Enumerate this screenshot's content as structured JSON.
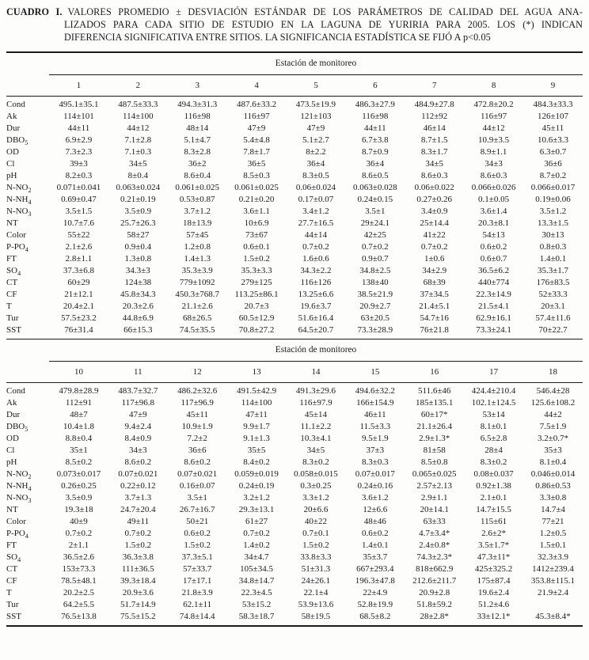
{
  "caption": {
    "label": "CUADRO I.",
    "lines": [
      "VALORES PROMEDIO ± DESVIACIÓN ESTÁNDAR DE LOS PARÁMETROS DE CALIDAD DEL AGUA ANA-",
      "LIZADOS PARA CADA SITIO DE ESTUDIO EN LA LAGUNA DE YURIRIA PARA 2005. LOS (*) INDICAN",
      "DIFERENCIA SIGNIFICATIVA ENTRE SITIOS. LA SIGNIFICANCIA ESTADÍSTICA SE FIJÓ A p<0.05"
    ]
  },
  "tables": [
    {
      "group_header": "Estación de monitoreo",
      "stations": [
        "1",
        "2",
        "3",
        "4",
        "5",
        "6",
        "7",
        "8",
        "9"
      ],
      "rows": [
        {
          "param": {
            "base": "Cond",
            "sub": ""
          },
          "values": [
            "495.1±35.1",
            "487.5±33.3",
            "494.3±31.3",
            "487.6±33.2",
            "473.5±19.9",
            "486.3±27.9",
            "484.9±27.8",
            "472.8±20.2",
            "484.3±33.3"
          ]
        },
        {
          "param": {
            "base": "Ak",
            "sub": ""
          },
          "values": [
            "114±101",
            "114±100",
            "116±98",
            "116±97",
            "121±103",
            "116±98",
            "112±92",
            "116±97",
            "126±107"
          ]
        },
        {
          "param": {
            "base": "Dur",
            "sub": ""
          },
          "values": [
            "44±11",
            "44±12",
            "48±14",
            "47±9",
            "47±9",
            "44±11",
            "46±14",
            "44±12",
            "45±11"
          ]
        },
        {
          "param": {
            "base": "DBO",
            "sub": "5"
          },
          "values": [
            "6.9±2.9",
            "7.1±2.8",
            "5.1±4.7",
            "5.4±4.8",
            "5.1±2.7",
            "6.7±3.8",
            "8.7±1.5",
            "10.9±3.5",
            "10.6±3.3"
          ]
        },
        {
          "param": {
            "base": "OD",
            "sub": ""
          },
          "values": [
            "7.3±2.3",
            "7.1±0.3",
            "8.3±2.8",
            "7.8±1.7",
            "8±2.2",
            "8.7±0.9",
            "8.3±1.7",
            "8.9±1.1",
            "6.3±0.7"
          ]
        },
        {
          "param": {
            "base": "Cl",
            "sub": ""
          },
          "values": [
            "39±3",
            "34±5",
            "36±2",
            "36±5",
            "36±4",
            "36±4",
            "34±5",
            "34±3",
            "36±6"
          ]
        },
        {
          "param": {
            "base": "pH",
            "sub": ""
          },
          "values": [
            "8.2±0.3",
            "8±0.4",
            "8.6±0.4",
            "8.5±0.3",
            "8.3±0.5",
            "8.6±0.5",
            "8.6±0.3",
            "8.6±0.3",
            "8.7±0.2"
          ]
        },
        {
          "param": {
            "base": "N-NO",
            "sub": "2"
          },
          "values": [
            "0.071±0.041",
            "0.063±0.024",
            "0.061±0.025",
            "0.061±0.025",
            "0.06±0.024",
            "0.063±0.028",
            "0.06±0.022",
            "0.066±0.026",
            "0.066±0.017"
          ]
        },
        {
          "param": {
            "base": "N-NH",
            "sub": "4"
          },
          "values": [
            "0.69±0.47",
            "0.21±0.19",
            "0.53±0.87",
            "0.21±0.20",
            "0.17±0.07",
            "0.24±0.15",
            "0.27±0.26",
            "0.1±0.05",
            "0.19±0.06"
          ]
        },
        {
          "param": {
            "base": "N-NO",
            "sub": "3"
          },
          "values": [
            "3.5±1.5",
            "3.5±0.9",
            "3.7±1.2",
            "3.6±1.1",
            "3.4±1.2",
            "3.5±1",
            "3.4±0.9",
            "3.6±1.4",
            "3.5±1.2"
          ]
        },
        {
          "param": {
            "base": "NT",
            "sub": ""
          },
          "values": [
            "10.7±7.6",
            "25.7±26.3",
            "18±13.9",
            "10±6.9",
            "27.7±16.5",
            "29±24.1",
            "25±14.4",
            "20.3±8.1",
            "13.3±1.5"
          ]
        },
        {
          "param": {
            "base": "Color",
            "sub": ""
          },
          "values": [
            "55±22",
            "58±27",
            "57±45",
            "73±67",
            "44±14",
            "42±25",
            "41±22",
            "54±13",
            "30±13"
          ]
        },
        {
          "param": {
            "base": "P-PO",
            "sub": "4"
          },
          "values": [
            "2.1±2.6",
            "0.9±0.4",
            "1.2±0.8",
            "0.6±0.1",
            "0.7±0.2",
            "0.7±0.2",
            "0.7±0.2",
            "0.6±0.2",
            "0.8±0.3"
          ]
        },
        {
          "param": {
            "base": "FT",
            "sub": ""
          },
          "values": [
            "2.8±1.1",
            "1.3±0.8",
            "1.4±1.3",
            "1.5±0.2",
            "1.6±0.6",
            "0.9±0.7",
            "1±0.6",
            "0.6±0.7",
            "1.4±0.1"
          ]
        },
        {
          "param": {
            "base": "SO",
            "sub": "4"
          },
          "values": [
            "37.3±6.8",
            "34.3±3",
            "35.3±3.9",
            "35.3±3.3",
            "34.3±2.2",
            "34.8±2.5",
            "34±2.9",
            "36.5±6.2",
            "35.3±1.7"
          ]
        },
        {
          "param": {
            "base": "CT",
            "sub": ""
          },
          "values": [
            "60±29",
            "124±38",
            "779±1092",
            "279±125",
            "116±126",
            "138±40",
            "68±39",
            "440±774",
            "176±83.5"
          ]
        },
        {
          "param": {
            "base": "CF",
            "sub": ""
          },
          "values": [
            "21±12.1",
            "45.8±34.3",
            "450.3±768.7",
            "113.25±86.1",
            "13.25±6.6",
            "38.5±21.9",
            "37±34.5",
            "22.3±14.9",
            "52±33.3"
          ]
        },
        {
          "param": {
            "base": "T",
            "sub": ""
          },
          "values": [
            "20.4±2.1",
            "20.3±2.6",
            "21.1±2.6",
            "20.7±3",
            "19.6±3.7",
            "20.9±2.7",
            "21.4±5.1",
            "21.5±4.1",
            "20±3.1"
          ]
        },
        {
          "param": {
            "base": "Tur",
            "sub": ""
          },
          "values": [
            "57.5±23.2",
            "44.8±6.9",
            "68±26.5",
            "60.5±12.9",
            "51.6±16.4",
            "63±20.5",
            "54.7±16",
            "62.9±16.1",
            "57.4±11.6"
          ]
        },
        {
          "param": {
            "base": "SST",
            "sub": ""
          },
          "values": [
            "76±31.4",
            "66±15.3",
            "74.5±35.5",
            "70.8±27.2",
            "64.5±20.7",
            "73.3±28.9",
            "76±21.8",
            "73.3±24.1",
            "70±22.7"
          ]
        }
      ]
    },
    {
      "group_header": "Estación de monitoreo",
      "stations": [
        "10",
        "11",
        "12",
        "13",
        "14",
        "15",
        "16",
        "17",
        "18"
      ],
      "rows": [
        {
          "param": {
            "base": "Cond",
            "sub": ""
          },
          "values": [
            "479.8±28.9",
            "483.7±32.7",
            "486.2±32.6",
            "491.5±42.9",
            "491.3±29.6",
            "494.6±32.2",
            "511.6±46",
            "424.4±210.4",
            "546.4±28"
          ]
        },
        {
          "param": {
            "base": "Ak",
            "sub": ""
          },
          "values": [
            "112±91",
            "117±96.8",
            "117±96.9",
            "114±100",
            "116±97.9",
            "166±154.9",
            "185±135.1",
            "102.1±124.5",
            "125.6±108.2"
          ]
        },
        {
          "param": {
            "base": "Dur",
            "sub": ""
          },
          "values": [
            "48±7",
            "47±9",
            "45±11",
            "47±11",
            "45±14",
            "46±11",
            "60±17*",
            "53±14",
            "44±2"
          ]
        },
        {
          "param": {
            "base": "DBO",
            "sub": "5"
          },
          "values": [
            "10.4±1.8",
            "9.4±2.4",
            "10.9±1.9",
            "9.9±1.7",
            "11.1±2.2",
            "11.5±3.3",
            "21.1±26.4",
            "8.1±0.1",
            "7.5±1.9"
          ]
        },
        {
          "param": {
            "base": "OD",
            "sub": ""
          },
          "values": [
            "8.8±0.4",
            "8.4±0.9",
            "7.2±2",
            "9.1±1.3",
            "10.3±4.1",
            "9.5±1.9",
            "2.9±1.3*",
            "6.5±2.8",
            "3.2±0.7*"
          ]
        },
        {
          "param": {
            "base": "Cl",
            "sub": ""
          },
          "values": [
            "35±1",
            "34±3",
            "36±6",
            "35±5",
            "34±5",
            "37±3",
            "81±58",
            "28±4",
            "35±3"
          ]
        },
        {
          "param": {
            "base": "pH",
            "sub": ""
          },
          "values": [
            "8.5±0.2",
            "8.6±0.2",
            "8.6±0.2",
            "8.4±0.2",
            "8.3±0.2",
            "8.3±0.3",
            "8.5±0.8",
            "8.3±0.2",
            "8.1±0.4"
          ]
        },
        {
          "param": {
            "base": "N-NO",
            "sub": "2"
          },
          "values": [
            "0.073±0.017",
            "0.07±0.021",
            "0.07±0.021",
            "0.059±0.019",
            "0.058±0.015",
            "0.07±0.017",
            "0.065±0.025",
            "0.08±0.037",
            "0.046±0.014"
          ]
        },
        {
          "param": {
            "base": "N-NH",
            "sub": "4"
          },
          "values": [
            "0.26±0.25",
            "0.22±0.12",
            "0.16±0.07",
            "0.24±0.19",
            "0.3±0.25",
            "0.24±0.16",
            "2.57±2.13",
            "0.92±1.38",
            "0.86±0.53"
          ]
        },
        {
          "param": {
            "base": "N-NO",
            "sub": "3"
          },
          "values": [
            "3.5±0.9",
            "3.7±1.3",
            "3.5±1",
            "3.2±1.2",
            "3.3±1.2",
            "3.6±1.2",
            "2.9±1.1",
            "2.1±0.1",
            "3.3±0.8"
          ]
        },
        {
          "param": {
            "base": "NT",
            "sub": ""
          },
          "values": [
            "19.3±18",
            "24.7±20.4",
            "26.7±16.7",
            "29.3±13.1",
            "20±6.6",
            "12±6.6",
            "20±14.1",
            "14.7±15.5",
            "14.7±4"
          ]
        },
        {
          "param": {
            "base": "Color",
            "sub": ""
          },
          "values": [
            "40±9",
            "49±11",
            "50±21",
            "61±27",
            "40±22",
            "48±46",
            "63±33",
            "115±61",
            "77±21"
          ]
        },
        {
          "param": {
            "base": "P-PO",
            "sub": "4"
          },
          "values": [
            "0.7±0.2",
            "0.7±0.2",
            "0.6±0.2",
            "0.7±0.2",
            "0.7±0.1",
            "0.6±0.2",
            "4.7±3.4*",
            "2.6±2*",
            "1.2±0.5"
          ]
        },
        {
          "param": {
            "base": "FT",
            "sub": ""
          },
          "values": [
            "2±1.1",
            "1.5±0.2",
            "1.5±0.2",
            "1.4±0.2",
            "1.5±0.2",
            "1.4±0.1",
            "2.4±0.8*",
            "3.5±1.7*",
            "1.5±0.1"
          ]
        },
        {
          "param": {
            "base": "SO",
            "sub": "4"
          },
          "values": [
            "36.5±2.6",
            "36.3±3.8",
            "37.3±5.1",
            "34±4.7",
            "33.8±3.3",
            "35±3.7",
            "74.3±2.3*",
            "47.3±11*",
            "32.3±3.9"
          ]
        },
        {
          "param": {
            "base": "CT",
            "sub": ""
          },
          "values": [
            "153±73.3",
            "111±36.5",
            "57±33.7",
            "105±34.5",
            "51±31.3",
            "667±293.4",
            "818±662.9",
            "425±325.2",
            "1412±239.4"
          ]
        },
        {
          "param": {
            "base": "CF",
            "sub": ""
          },
          "values": [
            "78.5±48.1",
            "39.3±18.4",
            "17±17.1",
            "34.8±14.7",
            "24±26.1",
            "196.3±47.8",
            "212.6±211.7",
            "175±87.4",
            "353.8±115.1"
          ]
        },
        {
          "param": {
            "base": "T",
            "sub": ""
          },
          "values": [
            "20.2±2.5",
            "20.9±3.6",
            "21.8±3.9",
            "22.3±4.5",
            "22.1±4",
            "22±4.9",
            "20.9±2.8",
            "19.6±2.4",
            "21.9±2.4"
          ]
        },
        {
          "param": {
            "base": "Tur",
            "sub": ""
          },
          "values": [
            "64.2±5.5",
            "51.7±14.9",
            "62.1±11",
            "53±15.2",
            "53.9±13.6",
            "52.8±19.9",
            "51.8±59.2",
            "51.2±4.6",
            ""
          ]
        },
        {
          "param": {
            "base": "SST",
            "sub": ""
          },
          "values": [
            "76.5±13.8",
            "75.5±15.2",
            "74.8±14.4",
            "58.3±18.7",
            "58±19.5",
            "68.5±8.2",
            "28±2.8*",
            "33±12.1*",
            "45.3±8.4*"
          ]
        }
      ]
    }
  ]
}
